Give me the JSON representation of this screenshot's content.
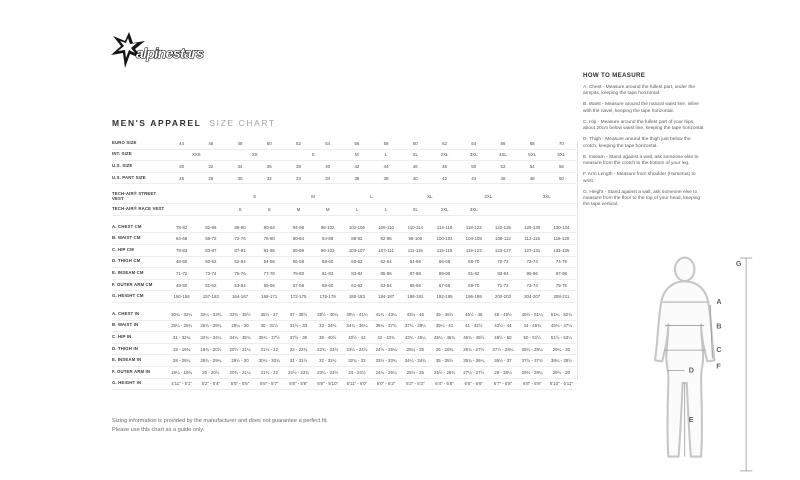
{
  "logo": {
    "brand": "alpinestars"
  },
  "title": {
    "bold": "MEN'S APPAREL",
    "light": "SIZE CHART"
  },
  "size_table": {
    "columns": 14,
    "sections": [
      {
        "name": "sizes",
        "rows": [
          {
            "label": "EURO SIZE",
            "cells": [
              "44",
              "46",
              "48",
              "50",
              "52",
              "54",
              "56",
              "58",
              "60",
              "62",
              "64",
              "66",
              "68",
              "70"
            ]
          },
          {
            "label": "INT. SIZE",
            "cells": [
              {
                "t": "XXS",
                "s": 2
              },
              {
                "t": "XS",
                "s": 2
              },
              {
                "t": "S",
                "s": 2
              },
              {
                "t": "M"
              },
              {
                "t": "L"
              },
              {
                "t": "XL"
              },
              {
                "t": "2XL"
              },
              {
                "t": "3XL"
              },
              {
                "t": "4XL"
              },
              {
                "t": "5XL"
              },
              {
                "t": "6XL"
              }
            ]
          },
          {
            "label": "U.S. SIZE",
            "cells": [
              "30",
              "32",
              "34",
              "36",
              "38",
              "40",
              "42",
              "44",
              "46",
              "48",
              "50",
              "52",
              "54",
              "56"
            ]
          },
          {
            "label": "U.S. PANT SIZE",
            "cells": [
              "26",
              "28",
              "30",
              "32",
              "33",
              "34",
              "36",
              "38",
              "40",
              "42",
              "44",
              "46",
              "48",
              "50"
            ]
          }
        ]
      },
      {
        "name": "tech_air",
        "rows": [
          {
            "label": "TECH-AIR® STREET VEST",
            "cells": [
              {
                "t": "",
                "s": 2
              },
              {
                "t": "S",
                "s": 2
              },
              {
                "t": "M",
                "s": 2
              },
              {
                "t": "L",
                "s": 2
              },
              {
                "t": "XL",
                "s": 2
              },
              {
                "t": "2XL",
                "s": 2
              },
              {
                "t": "3XL",
                "s": 2
              }
            ]
          },
          {
            "label": "TECH-AIR® RACE VEST",
            "cells": [
              {
                "t": "",
                "s": 2
              },
              {
                "t": "S"
              },
              {
                "t": "S"
              },
              {
                "t": "M"
              },
              {
                "t": "M"
              },
              {
                "t": "L"
              },
              {
                "t": "L"
              },
              {
                "t": "XL"
              },
              {
                "t": "2XL"
              },
              {
                "t": "3XL"
              },
              {
                "t": "",
                "s": 3
              }
            ]
          }
        ]
      },
      {
        "name": "cm",
        "rows": [
          {
            "label": "A. CHEST CM",
            "cells": [
              "78-82",
              "82-86",
              "86-90",
              "90-94",
              "94-98",
              "98-102",
              "102-106",
              "106-110",
              "110-114",
              "114-118",
              "118-122",
              "122-126",
              "126-130",
              "130-134"
            ]
          },
          {
            "label": "B. WAIST CM",
            "cells": [
              "64-68",
              "68-72",
              "72-76",
              "76-80",
              "80-84",
              "84-88",
              "88-92",
              "92-96",
              "96-100",
              "100-104",
              "104-108",
              "108-112",
              "112-116",
              "116-120"
            ]
          },
          {
            "label": "C. HIP CM",
            "cells": [
              "79-83",
              "83-87",
              "87-91",
              "91-95",
              "95-99",
              "99-103",
              "103-107",
              "107-111",
              "111-115",
              "115-119",
              "119-123",
              "123-127",
              "127-131",
              "131-135"
            ]
          },
          {
            "label": "D. THIGH CM",
            "cells": [
              "48-50",
              "50-52",
              "52-54",
              "54-56",
              "56-58",
              "58-60",
              "60-62",
              "62-64",
              "64-66",
              "66-68",
              "68-70",
              "70-72",
              "72-74",
              "74-76"
            ]
          },
          {
            "label": "E. INSEAM CM",
            "cells": [
              "71-72",
              "73-74",
              "75-76",
              "77-78",
              "79-80",
              "81-82",
              "83-84",
              "85-86",
              "87-88",
              "89-90",
              "91-92",
              "93-94",
              "95-96",
              "97-98"
            ]
          },
          {
            "label": "F. OUTER ARM CM",
            "cells": [
              "49-50",
              "51-52",
              "53-54",
              "55-56",
              "57-58",
              "59-60",
              "61-62",
              "63-64",
              "65-66",
              "67-68",
              "69-70",
              "71-72",
              "73-74",
              "75-76"
            ]
          },
          {
            "label": "G. HEIGHT CM",
            "cells": [
              "150-156",
              "157-163",
              "164-167",
              "168-171",
              "172-175",
              "176-179",
              "180-183",
              "184-187",
              "188-191",
              "192-195",
              "196-199",
              "200-203",
              "204-207",
              "208-211"
            ]
          }
        ]
      },
      {
        "name": "in",
        "rows": [
          {
            "label": "A. CHEST IN",
            "cells": [
              "30¾ - 32¼",
              "32¼ - 33¾",
              "33¾ - 35½",
              "35½ - 37",
              "37 - 38½",
              "38½ - 40¼",
              "40¼ - 41¾",
              "41¾ - 43¼",
              "43¼ - 45",
              "45 - 46½",
              "46½ - 48",
              "48 - 49½",
              "49½ - 51¼",
              "51¼ - 52¾"
            ]
          },
          {
            "label": "B. WAIST IN",
            "cells": [
              "25¼ - 26¾",
              "26¾ - 28¼",
              "28¼ - 30",
              "30 - 31½",
              "31½ - 33",
              "33 - 34¾",
              "34¾ - 36¼",
              "36¼ - 37¾",
              "37¾ - 39¼",
              "39¼ - 41",
              "41 - 42½",
              "42½ - 44",
              "44 - 45¾",
              "45¾ - 47¼"
            ]
          },
          {
            "label": "C. HIP IN",
            "cells": [
              "31 - 32¾",
              "32¾ - 34¼",
              "34¼ - 35¾",
              "35¾ - 37½",
              "37½ - 39",
              "39 - 40½",
              "40½ - 42",
              "42 - 43¾",
              "43¾ - 45¼",
              "45¼ - 46¾",
              "46¾ - 48½",
              "48½ - 50",
              "50 - 51½",
              "51½ - 53¼"
            ]
          },
          {
            "label": "D. THIGH IN",
            "cells": [
              "19 - 19¾",
              "19¾ - 20½",
              "20½ - 21¼",
              "21¼ - 22",
              "22 - 22¾",
              "22¾ - 23½",
              "23½ - 24½",
              "24½ - 25¼",
              "25¼ - 26",
              "26 - 26¾",
              "26¾ - 27½",
              "27½ - 28¼",
              "28¼ - 29¼",
              "29¼ - 30"
            ]
          },
          {
            "label": "E. INSEAM IN",
            "cells": [
              "28 - 28¼",
              "28¾ - 29¼",
              "29½ - 30",
              "30¼ - 30¾",
              "31 - 31½",
              "32 - 32¼",
              "32¾ - 33",
              "33½ - 33¾",
              "34¼ - 34¾",
              "35 - 35½",
              "35¾ - 36¼",
              "36½ - 37",
              "37½ - 37¾",
              "38¼ - 38½"
            ]
          },
          {
            "label": "F. OUTER ARM IN",
            "cells": [
              "19¼ - 19¾",
              "20 - 20½",
              "20¾ - 21¼",
              "21¾ - 22",
              "22½ - 22¾",
              "23¼ - 23½",
              "24 - 24½",
              "24¾ - 25¼",
              "25½ - 26",
              "26½ - 26¾",
              "27¼ - 27½",
              "28 - 28¼",
              "28¾ - 29¼",
              "29½ - 30"
            ]
          },
          {
            "label": "G. HEIGHT IN",
            "cells": [
              "4'11\" - 5'1\"",
              "5'2\" - 5'4\"",
              "5'5\" - 5'6\"",
              "5'6\" - 5'7\"",
              "5'8\" - 5'9\"",
              "5'9\" - 5'10\"",
              "5'11\" - 6'0\"",
              "6'0\" - 6'2\"",
              "6'2\" - 6'3\"",
              "6'4\" - 6'5\"",
              "6'5\" - 6'6\"",
              "6'7\" - 6'8\"",
              "6'8\" - 6'9\"",
              "6'10\" - 6'11\""
            ]
          }
        ]
      }
    ]
  },
  "how_to_measure": {
    "heading": "HOW TO MEASURE",
    "items": [
      "A. Chest - Measure around the fullest part, under the armpits, keeping the tape horizontal.",
      "B. Waist - Measure around the natural waist line, inline with the navel, keeping the tape horizontal.",
      "C. Hip - Measure around the fullest part of your hips, about 20cm below waist line, keeping the tape horizontal.",
      "D. Thigh - Measure around the thigh just below the crotch, keeping the tape horizontal.",
      "E. Inseam - Stand against a wall, ask someone else to measure from the crotch to the bottom of your leg.",
      "F. Arm Length - Measure from shoulder (Humerus) to wrist.",
      "G. Height - Stand against a wall, ask someone else to measure from the floor to the top of your head, keeping the tape vertical."
    ]
  },
  "figure": {
    "labels": [
      "A",
      "B",
      "C",
      "D",
      "E",
      "F",
      "G"
    ]
  },
  "disclaimer": {
    "line1": "Sizing information is provided by the manufacturer and does not guarantee a perfect fit.",
    "line2": "Please use this chart as a guide only."
  },
  "colors": {
    "text": "#3a3a3a",
    "muted": "#a2a2a2",
    "rule": "#ededed",
    "figure": "#c6c6c6"
  }
}
